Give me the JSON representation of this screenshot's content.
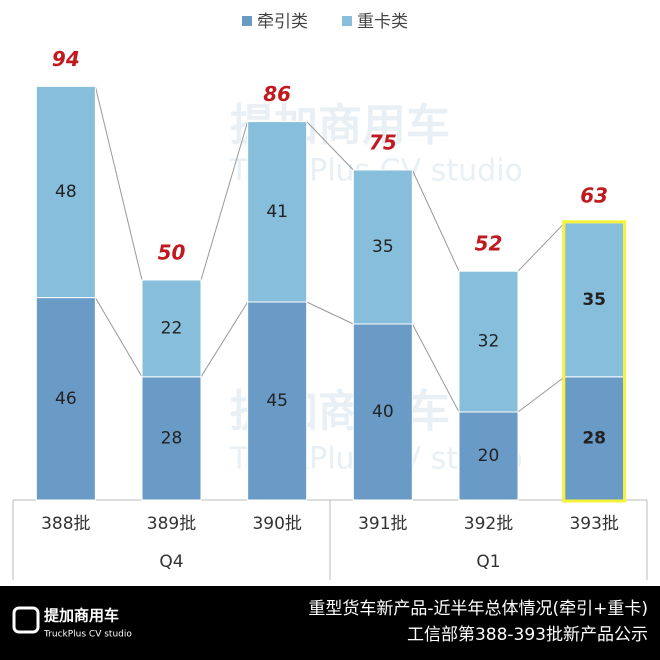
{
  "chart_data": {
    "type": "stacked_bar",
    "categories": [
      "388批",
      "389批",
      "390批",
      "391批",
      "392批",
      "393批"
    ],
    "groups": [
      {
        "name": "Q4",
        "count": 3
      },
      {
        "name": "Q1",
        "count": 3
      }
    ],
    "series": [
      {
        "name": "牵引类",
        "color": "#6a9ac6",
        "values": [
          46,
          28,
          45,
          40,
          20,
          28
        ]
      },
      {
        "name": "重卡类",
        "color": "#86bedb",
        "values": [
          48,
          22,
          41,
          35,
          32,
          35
        ]
      }
    ],
    "totals": [
      94,
      50,
      86,
      75,
      52,
      63
    ],
    "totals_color": "#c0191f",
    "highlight": 5,
    "highlight_color": "#f4f23a",
    "ylim": [
      0,
      100
    ]
  },
  "watermark": {
    "logo": "提加商用车",
    "sub": "TruckPlus CV studio"
  },
  "footer": {
    "logo": "提加商用车",
    "logo_sub": "TruckPlus CV studio",
    "lines": [
      "重型货车新产品-近半年总体情况(牵引+重卡)",
      "工信部第388-393批新产品公示"
    ]
  }
}
